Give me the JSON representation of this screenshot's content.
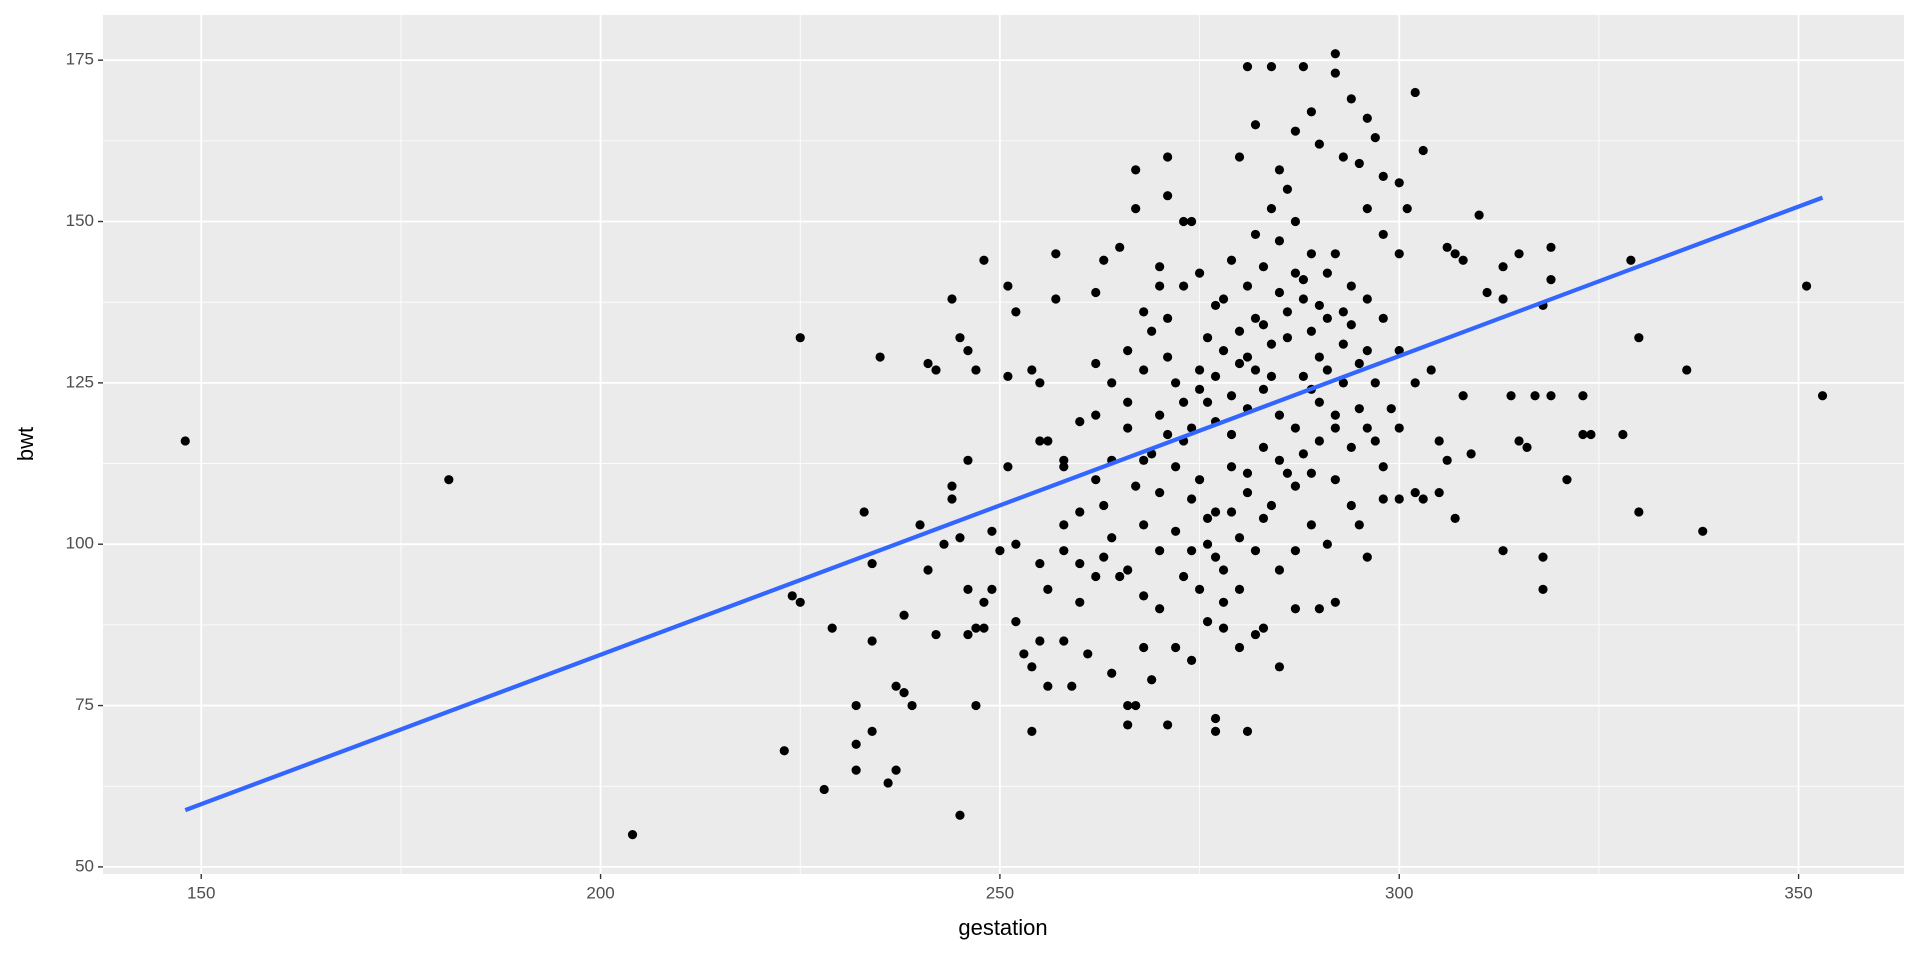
{
  "chart_data": {
    "type": "scatter",
    "x_label": "gestation",
    "y_label": "bwt",
    "xlim": [
      137.7,
      363.2
    ],
    "ylim": [
      48.9,
      182.0
    ],
    "xticks": [
      150,
      200,
      250,
      300,
      350
    ],
    "yticks": [
      50,
      75,
      100,
      125,
      150,
      175
    ],
    "minor_xticks": [
      175,
      225,
      275,
      325
    ],
    "minor_yticks": [
      62.5,
      87.5,
      112.5,
      137.5,
      162.5
    ],
    "grid": true,
    "color": "#000000",
    "x": [
      148,
      181,
      204,
      223,
      224,
      225,
      225,
      228,
      229,
      232,
      232,
      232,
      233,
      234,
      234,
      234,
      235,
      236,
      237,
      237,
      238,
      238,
      239,
      240,
      241,
      241,
      242,
      242,
      243,
      244,
      244,
      244,
      245,
      245,
      245,
      246,
      246,
      246,
      246,
      247,
      247,
      247,
      248,
      248,
      248,
      249,
      249,
      250,
      251,
      251,
      251,
      252,
      252,
      252,
      253,
      254,
      254,
      254,
      255,
      255,
      255,
      255,
      256,
      256,
      257,
      257,
      258,
      258,
      259,
      260,
      261,
      262,
      262,
      263,
      263,
      264,
      265,
      266,
      266,
      267,
      267,
      267,
      268,
      269,
      270,
      271,
      271,
      271,
      273,
      274,
      277,
      277,
      281,
      281,
      284,
      288,
      292,
      292,
      294,
      296,
      302,
      303,
      306,
      307,
      308,
      310,
      311,
      313,
      313,
      313,
      314,
      315,
      315,
      316,
      317,
      318,
      318,
      318,
      319,
      319,
      319,
      321,
      323,
      323,
      324,
      328,
      329,
      330,
      330,
      336,
      338,
      351,
      353,
      295,
      298,
      300,
      302,
      303,
      305,
      306,
      307,
      309,
      305,
      308,
      304,
      302,
      300,
      298,
      296,
      294,
      292,
      290,
      292,
      287,
      285,
      283,
      282,
      280,
      278,
      276,
      274,
      272,
      270,
      268,
      265,
      263,
      260,
      258,
      280,
      282,
      285,
      287,
      289,
      290,
      293,
      295,
      297,
      298,
      300,
      301,
      300,
      298,
      296,
      270,
      272,
      274,
      276,
      278,
      280,
      282,
      284,
      286,
      288,
      290,
      275,
      277,
      279,
      281,
      283,
      285,
      287,
      289,
      291,
      293,
      268,
      270,
      272,
      274,
      276,
      278,
      280,
      282,
      284,
      286,
      288,
      290,
      292,
      294,
      296,
      271,
      273,
      275,
      277,
      279,
      281,
      283,
      285,
      287,
      289,
      291,
      293,
      295,
      297,
      299,
      266,
      264,
      262,
      260,
      258,
      256,
      262,
      264,
      266,
      268,
      269,
      271,
      273,
      275,
      277,
      279,
      281,
      283,
      285,
      287,
      289,
      291,
      280,
      278,
      276,
      274,
      272,
      270,
      268,
      266,
      264,
      262,
      260,
      258,
      282,
      284,
      286,
      288,
      290,
      292,
      294,
      296,
      298,
      300,
      276,
      278,
      280,
      282,
      284,
      286,
      288,
      290,
      292,
      294,
      296,
      273,
      275,
      277,
      279,
      281,
      283,
      285,
      287,
      289,
      270,
      268,
      266,
      267,
      269,
      271,
      273,
      275,
      277,
      279,
      281,
      283,
      285,
      287,
      289,
      291,
      293,
      295,
      297
    ],
    "values": [
      116,
      110,
      55,
      68,
      92,
      91,
      132,
      62,
      87,
      75,
      69,
      65,
      105,
      97,
      85,
      71,
      129,
      63,
      78,
      65,
      77,
      89,
      75,
      103,
      96,
      128,
      127,
      86,
      100,
      138,
      109,
      107,
      132,
      58,
      101,
      130,
      93,
      86,
      113,
      127,
      75,
      87,
      87,
      91,
      144,
      93,
      102,
      99,
      140,
      126,
      112,
      136,
      100,
      88,
      83,
      71,
      127,
      81,
      125,
      97,
      85,
      116,
      78,
      93,
      145,
      138,
      113,
      85,
      78,
      119,
      83,
      139,
      128,
      144,
      106,
      80,
      146,
      75,
      72,
      75,
      158,
      152,
      84,
      79,
      143,
      160,
      154,
      72,
      150,
      150,
      73,
      71,
      71,
      174,
      174,
      174,
      176,
      173,
      169,
      166,
      170,
      161,
      146,
      145,
      144,
      151,
      139,
      143,
      138,
      99,
      123,
      145,
      116,
      115,
      123,
      98,
      93,
      137,
      146,
      141,
      123,
      110,
      123,
      117,
      117,
      117,
      144,
      132,
      105,
      127,
      102,
      140,
      123,
      103,
      107,
      107,
      108,
      107,
      108,
      113,
      104,
      114,
      116,
      123,
      127,
      125,
      130,
      135,
      138,
      140,
      120,
      90,
      91,
      90,
      81,
      87,
      86,
      84,
      87,
      88,
      82,
      84,
      90,
      92,
      95,
      98,
      97,
      103,
      160,
      165,
      158,
      164,
      167,
      162,
      160,
      159,
      163,
      157,
      156,
      152,
      145,
      148,
      152,
      120,
      125,
      118,
      122,
      130,
      128,
      135,
      126,
      132,
      138,
      129,
      110,
      105,
      112,
      108,
      115,
      120,
      118,
      124,
      127,
      131,
      113,
      108,
      102,
      99,
      104,
      96,
      101,
      99,
      106,
      111,
      114,
      116,
      110,
      115,
      118,
      135,
      140,
      142,
      137,
      144,
      140,
      143,
      147,
      150,
      145,
      142,
      136,
      128,
      125,
      121,
      118,
      113,
      110,
      105,
      112,
      116,
      120,
      125,
      130,
      127,
      133,
      129,
      116,
      124,
      119,
      117,
      121,
      124,
      113,
      109,
      103,
      100,
      93,
      91,
      100,
      107,
      112,
      99,
      103,
      96,
      101,
      95,
      91,
      99,
      148,
      152,
      155,
      141,
      137,
      145,
      134,
      130,
      112,
      118,
      132,
      138,
      133,
      127,
      131,
      136,
      126,
      122,
      118,
      106,
      98,
      95,
      93,
      98,
      105,
      111,
      104,
      96,
      99,
      111,
      140,
      136,
      122,
      109,
      114,
      117,
      122,
      127,
      126,
      123,
      129,
      134,
      139,
      142,
      133,
      135,
      125,
      121,
      116
    ],
    "fit": {
      "color": "#3366ff",
      "x": [
        148,
        353
      ],
      "values": [
        58.8,
        153.7
      ]
    }
  }
}
